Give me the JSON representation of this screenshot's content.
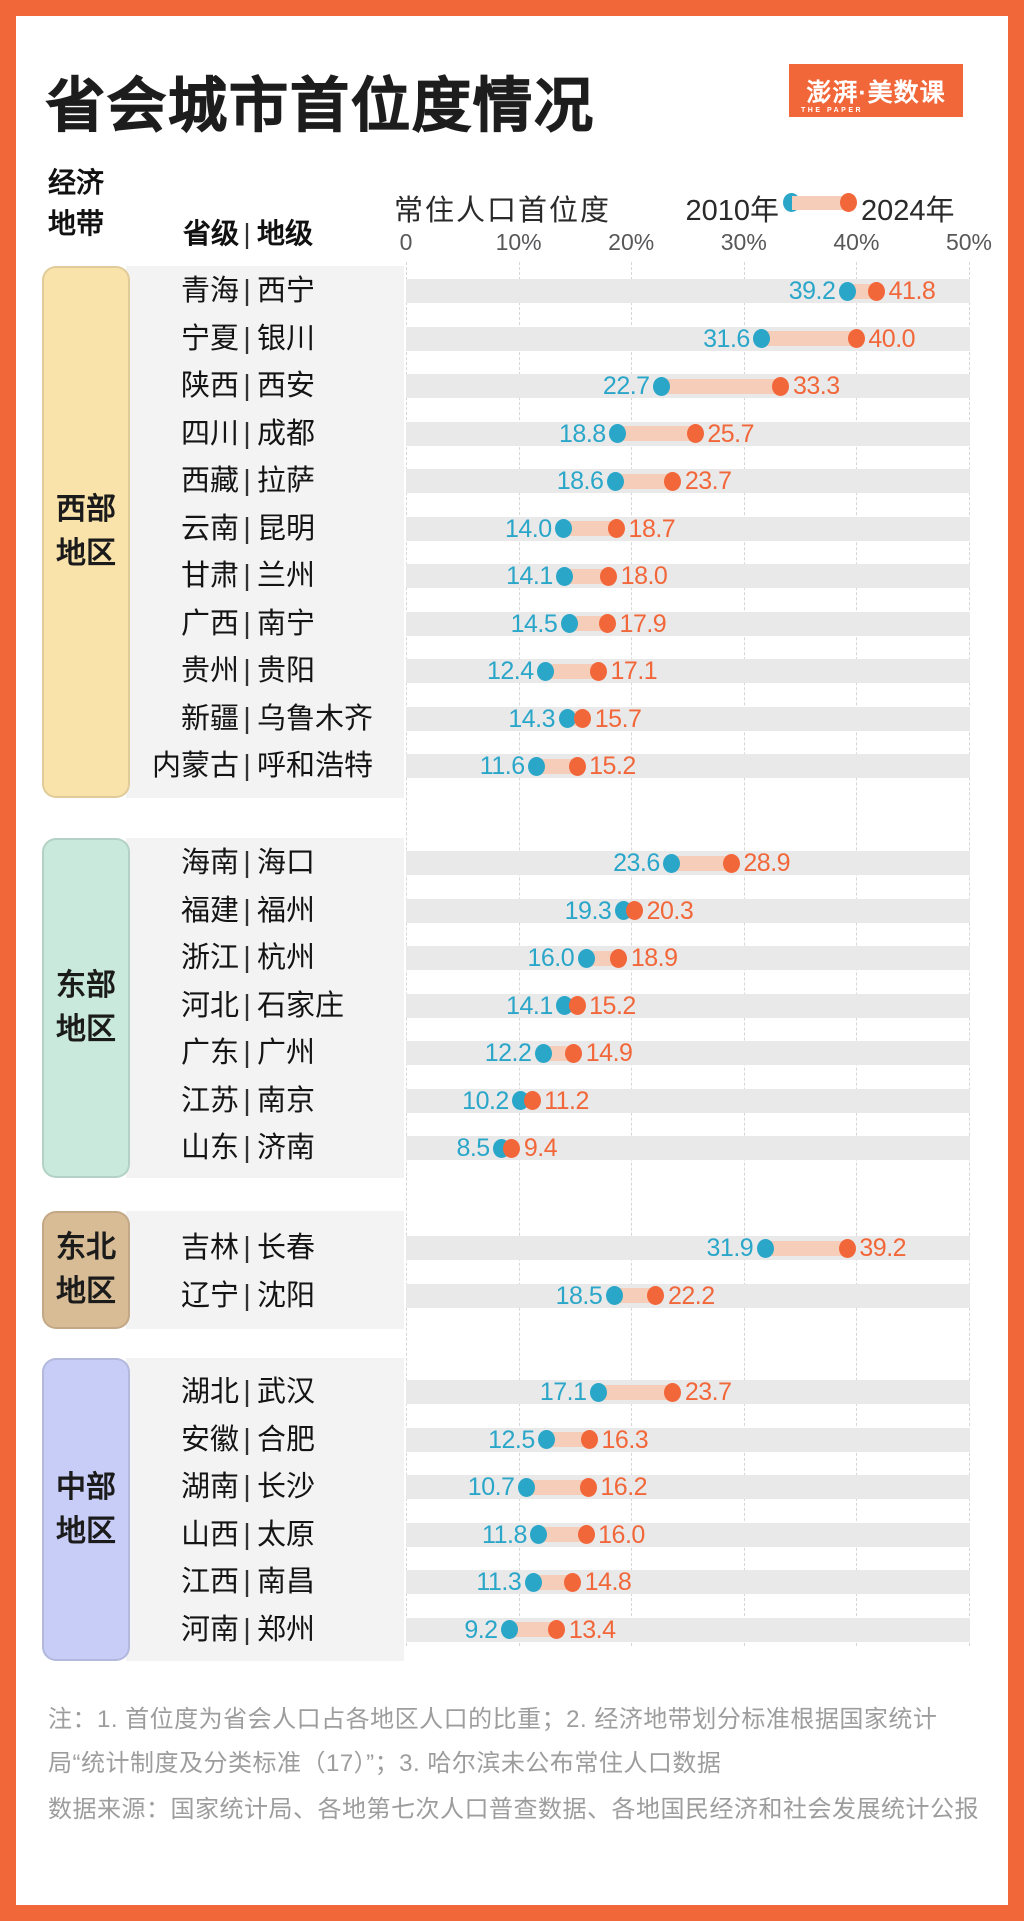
{
  "title": "省会城市首位度情况",
  "logo": {
    "brand": "澎湃·美数课",
    "sub": "THE PAPER"
  },
  "header": {
    "zone_label_lines": [
      "经济",
      "地带"
    ],
    "level": {
      "prov": "省级",
      "city": "地级"
    },
    "separator": "|",
    "measure_label": "常住人口首位度",
    "legend": [
      {
        "label": "2010年",
        "color": "#2aa6c9"
      },
      {
        "label": "2024年",
        "color": "#f2673a"
      }
    ]
  },
  "axis": {
    "ticks": [
      {
        "label": "0",
        "value": 0
      },
      {
        "label": "10%",
        "value": 10
      },
      {
        "label": "20%",
        "value": 20
      },
      {
        "label": "30%",
        "value": 30
      },
      {
        "label": "40%",
        "value": 40
      },
      {
        "label": "50%",
        "value": 50
      }
    ]
  },
  "colors": {
    "orange": "#f2673a",
    "teal": "#2aa6c9",
    "band": "#f6cdb9",
    "track": "#e9e9e9",
    "panel": "#f3f3f3",
    "grid": "#d6d6d6",
    "ink": "#1d1d1d",
    "note": "#9d9d9d",
    "axis": "#58585a"
  },
  "chart_data": {
    "type": "dumbbell",
    "unit": "%",
    "xlim": [
      0,
      50
    ],
    "series": [
      "2010年",
      "2024年"
    ],
    "legend_position": "top",
    "grid": "dashed-vertical",
    "groups": [
      {
        "region": "西部地区",
        "region_lines": [
          "西部",
          "地区"
        ],
        "color": "#fae3ab",
        "rows": [
          {
            "province": "青海",
            "city": "西宁",
            "v2010": 39.2,
            "v2024": 41.8
          },
          {
            "province": "宁夏",
            "city": "银川",
            "v2010": 31.6,
            "v2024": 40.0
          },
          {
            "province": "陕西",
            "city": "西安",
            "v2010": 22.7,
            "v2024": 33.3
          },
          {
            "province": "四川",
            "city": "成都",
            "v2010": 18.8,
            "v2024": 25.7
          },
          {
            "province": "西藏",
            "city": "拉萨",
            "v2010": 18.6,
            "v2024": 23.7
          },
          {
            "province": "云南",
            "city": "昆明",
            "v2010": 14.0,
            "v2024": 18.7
          },
          {
            "province": "甘肃",
            "city": "兰州",
            "v2010": 14.1,
            "v2024": 18.0
          },
          {
            "province": "广西",
            "city": "南宁",
            "v2010": 14.5,
            "v2024": 17.9
          },
          {
            "province": "贵州",
            "city": "贵阳",
            "v2010": 12.4,
            "v2024": 17.1
          },
          {
            "province": "新疆",
            "city": "乌鲁木齐",
            "v2010": 14.3,
            "v2024": 15.7
          },
          {
            "province": "内蒙古",
            "city": "呼和浩特",
            "v2010": 11.6,
            "v2024": 15.2
          }
        ]
      },
      {
        "region": "东部地区",
        "region_lines": [
          "东部",
          "地区"
        ],
        "color": "#c8e9db",
        "rows": [
          {
            "province": "海南",
            "city": "海口",
            "v2010": 23.6,
            "v2024": 28.9
          },
          {
            "province": "福建",
            "city": "福州",
            "v2010": 19.3,
            "v2024": 20.3
          },
          {
            "province": "浙江",
            "city": "杭州",
            "v2010": 16.0,
            "v2024": 18.9
          },
          {
            "province": "河北",
            "city": "石家庄",
            "v2010": 14.1,
            "v2024": 15.2
          },
          {
            "province": "广东",
            "city": "广州",
            "v2010": 12.2,
            "v2024": 14.9
          },
          {
            "province": "江苏",
            "city": "南京",
            "v2010": 10.2,
            "v2024": 11.2
          },
          {
            "province": "山东",
            "city": "济南",
            "v2010": 8.5,
            "v2024": 9.4
          }
        ]
      },
      {
        "region": "东北地区",
        "region_lines": [
          "东北",
          "地区"
        ],
        "color": "#d8bc96",
        "rows": [
          {
            "province": "吉林",
            "city": "长春",
            "v2010": 31.9,
            "v2024": 39.2
          },
          {
            "province": "辽宁",
            "city": "沈阳",
            "v2010": 18.5,
            "v2024": 22.2
          }
        ]
      },
      {
        "region": "中部地区",
        "region_lines": [
          "中部",
          "地区"
        ],
        "color": "#c8cdf7",
        "rows": [
          {
            "province": "湖北",
            "city": "武汉",
            "v2010": 17.1,
            "v2024": 23.7
          },
          {
            "province": "安徽",
            "city": "合肥",
            "v2010": 12.5,
            "v2024": 16.3
          },
          {
            "province": "湖南",
            "city": "长沙",
            "v2010": 10.7,
            "v2024": 16.2
          },
          {
            "province": "山西",
            "city": "太原",
            "v2010": 11.8,
            "v2024": 16.0
          },
          {
            "province": "江西",
            "city": "南昌",
            "v2010": 11.3,
            "v2024": 14.8
          },
          {
            "province": "河南",
            "city": "郑州",
            "v2010": 9.2,
            "v2024": 13.4
          }
        ]
      }
    ]
  },
  "notes": "注：1. 首位度为省会人口占各地区人口的比重；2. 经济地带划分标准根据国家统计局“统计制度及分类标准（17）”；3. 哈尔滨未公布常住人口数据",
  "source": "数据来源：国家统计局、各地第七次人口普查数据、各地国民经济和社会发展统计公报"
}
